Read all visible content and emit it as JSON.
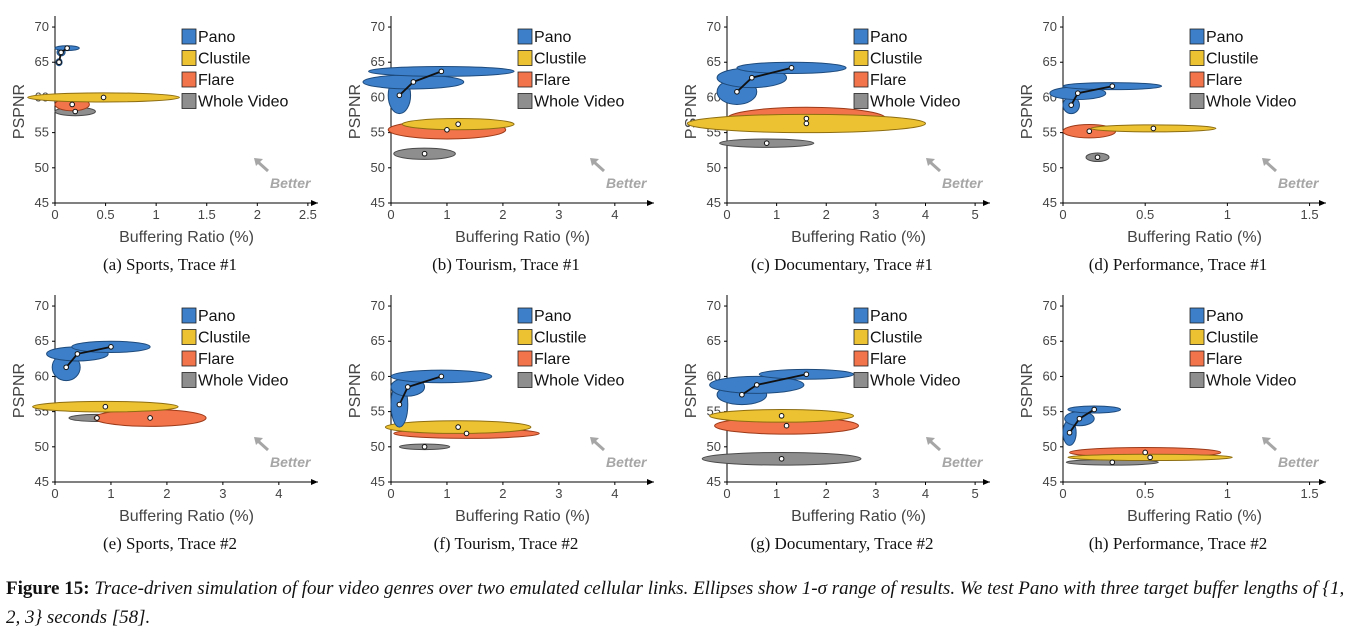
{
  "figure": {
    "label": "Figure 15:",
    "caption": "Trace-driven simulation of four video genres over two emulated cellular links. Ellipses show 1-σ range of results. We test Pano with three target buffer lengths of {1, 2, 3} seconds [58]."
  },
  "colors": {
    "Pano": "#3d7fc8",
    "Clustile": "#ecc232",
    "Flare": "#f2744a",
    "Whole Video": "#8e8e8e",
    "better": "#a6a6a6"
  },
  "chart_data": [
    {
      "id": "a",
      "type": "scatter",
      "subtitle": "(a) Sports, Trace #1",
      "xlabel": "Buffering Ratio (%)",
      "ylabel": "PSPNR",
      "xlim": [
        0,
        2.6
      ],
      "xticks": [
        "0",
        "0.5",
        "1",
        "1.5",
        "2",
        "2.5"
      ],
      "xtick_values": [
        0,
        0.5,
        1,
        1.5,
        2,
        2.5
      ],
      "ylim": [
        45,
        71
      ],
      "yticks": [
        "45",
        "50",
        "55",
        "60",
        "65",
        "70"
      ],
      "ytick_values": [
        45,
        50,
        55,
        60,
        65,
        70
      ],
      "legend": [
        "Pano",
        "Clustile",
        "Flare",
        "Whole Video"
      ],
      "annotation": "Better",
      "series": [
        {
          "name": "Pano",
          "points": [
            [
              0.04,
              65.0,
              0.03,
              0.5
            ],
            [
              0.06,
              66.4,
              0.04,
              0.5
            ],
            [
              0.12,
              67.0,
              0.12,
              0.35
            ]
          ]
        },
        {
          "name": "Clustile",
          "points": [
            [
              0.48,
              60.0,
              0.75,
              0.65
            ]
          ]
        },
        {
          "name": "Flare",
          "points": [
            [
              0.17,
              59.0,
              0.17,
              0.9
            ]
          ]
        },
        {
          "name": "Whole Video",
          "points": [
            [
              0.2,
              58.0,
              0.2,
              0.6
            ]
          ]
        }
      ]
    },
    {
      "id": "b",
      "type": "scatter",
      "subtitle": "(b) Tourism, Trace #1",
      "xlabel": "Buffering Ratio (%)",
      "ylabel": "PSPNR",
      "xlim": [
        0,
        4.7
      ],
      "xticks": [
        "0",
        "1",
        "2",
        "3",
        "4"
      ],
      "xtick_values": [
        0,
        1,
        2,
        3,
        4
      ],
      "ylim": [
        45,
        71
      ],
      "yticks": [
        "45",
        "50",
        "55",
        "60",
        "65",
        "70"
      ],
      "ytick_values": [
        45,
        50,
        55,
        60,
        65,
        70
      ],
      "legend": [
        "Pano",
        "Clustile",
        "Flare",
        "Whole Video"
      ],
      "annotation": "Better",
      "series": [
        {
          "name": "Pano",
          "points": [
            [
              0.15,
              60.3,
              0.2,
              2.6
            ],
            [
              0.4,
              62.2,
              0.9,
              1.0
            ],
            [
              0.9,
              63.7,
              1.3,
              0.7
            ]
          ]
        },
        {
          "name": "Clustile",
          "points": [
            [
              1.2,
              56.2,
              1.0,
              0.8
            ]
          ]
        },
        {
          "name": "Flare",
          "points": [
            [
              1.0,
              55.4,
              1.05,
              1.3
            ]
          ]
        },
        {
          "name": "Whole Video",
          "points": [
            [
              0.6,
              52.0,
              0.55,
              0.8
            ]
          ]
        }
      ]
    },
    {
      "id": "c",
      "type": "scatter",
      "subtitle": "(c) Documentary, Trace #1",
      "xlabel": "Buffering Ratio (%)",
      "ylabel": "PSPNR",
      "xlim": [
        0,
        5.3
      ],
      "xticks": [
        "0",
        "1",
        "2",
        "3",
        "4",
        "5"
      ],
      "xtick_values": [
        0,
        1,
        2,
        3,
        4,
        5
      ],
      "ylim": [
        45,
        71
      ],
      "yticks": [
        "45",
        "50",
        "55",
        "60",
        "65",
        "70"
      ],
      "ytick_values": [
        45,
        50,
        55,
        60,
        65,
        70
      ],
      "legend": [
        "Pano",
        "Clustile",
        "Flare",
        "Whole Video"
      ],
      "annotation": "Better",
      "series": [
        {
          "name": "Pano",
          "points": [
            [
              0.2,
              60.8,
              0.4,
              1.8
            ],
            [
              0.5,
              62.8,
              0.7,
              1.4
            ],
            [
              1.3,
              64.2,
              1.1,
              0.8
            ]
          ]
        },
        {
          "name": "Clustile",
          "points": [
            [
              1.6,
              56.3,
              2.4,
              1.3
            ]
          ]
        },
        {
          "name": "Flare",
          "points": [
            [
              1.6,
              57.0,
              1.6,
              1.6
            ]
          ]
        },
        {
          "name": "Whole Video",
          "points": [
            [
              0.8,
              53.5,
              0.95,
              0.6
            ]
          ]
        }
      ]
    },
    {
      "id": "d",
      "type": "scatter",
      "subtitle": "(d) Performance, Trace #1",
      "xlabel": "Buffering Ratio (%)",
      "ylabel": "PSPNR",
      "xlim": [
        0,
        1.6
      ],
      "xticks": [
        "0",
        "0.5",
        "1",
        "1.5"
      ],
      "xtick_values": [
        0,
        0.5,
        1,
        1.5
      ],
      "ylim": [
        45,
        71
      ],
      "yticks": [
        "45",
        "50",
        "55",
        "60",
        "65",
        "70"
      ],
      "ytick_values": [
        45,
        50,
        55,
        60,
        65,
        70
      ],
      "legend": [
        "Pano",
        "Clustile",
        "Flare",
        "Whole Video"
      ],
      "annotation": "Better",
      "series": [
        {
          "name": "Pano",
          "points": [
            [
              0.05,
              58.9,
              0.05,
              1.2
            ],
            [
              0.09,
              60.6,
              0.17,
              0.9
            ],
            [
              0.3,
              61.6,
              0.3,
              0.5
            ]
          ]
        },
        {
          "name": "Clustile",
          "points": [
            [
              0.55,
              55.6,
              0.38,
              0.5
            ]
          ]
        },
        {
          "name": "Flare",
          "points": [
            [
              0.16,
              55.2,
              0.16,
              0.95
            ]
          ]
        },
        {
          "name": "Whole Video",
          "points": [
            [
              0.21,
              51.5,
              0.07,
              0.6
            ]
          ]
        }
      ]
    },
    {
      "id": "e",
      "type": "scatter",
      "subtitle": "(e) Sports, Trace #2",
      "xlabel": "Buffering Ratio (%)",
      "ylabel": "PSPNR",
      "xlim": [
        0,
        4.7
      ],
      "xticks": [
        "0",
        "1",
        "2",
        "3",
        "4"
      ],
      "xtick_values": [
        0,
        1,
        2,
        3,
        4
      ],
      "ylim": [
        45,
        71
      ],
      "yticks": [
        "45",
        "50",
        "55",
        "60",
        "65",
        "70"
      ],
      "ytick_values": [
        45,
        50,
        55,
        60,
        65,
        70
      ],
      "legend": [
        "Pano",
        "Clustile",
        "Flare",
        "Whole Video"
      ],
      "annotation": "Better",
      "series": [
        {
          "name": "Pano",
          "points": [
            [
              0.2,
              61.3,
              0.25,
              1.9
            ],
            [
              0.4,
              63.2,
              0.55,
              1.0
            ],
            [
              1.0,
              64.2,
              0.7,
              0.8
            ]
          ]
        },
        {
          "name": "Clustile",
          "points": [
            [
              0.9,
              55.7,
              1.3,
              0.75
            ]
          ]
        },
        {
          "name": "Flare",
          "points": [
            [
              1.7,
              54.1,
              1.0,
              1.2
            ]
          ]
        },
        {
          "name": "Whole Video",
          "points": [
            [
              0.75,
              54.1,
              0.5,
              0.5
            ]
          ]
        }
      ]
    },
    {
      "id": "f",
      "type": "scatter",
      "subtitle": "(f) Tourism, Trace #2",
      "xlabel": "Buffering Ratio (%)",
      "ylabel": "PSPNR",
      "xlim": [
        0,
        4.7
      ],
      "xticks": [
        "0",
        "1",
        "2",
        "3",
        "4"
      ],
      "xtick_values": [
        0,
        1,
        2,
        3,
        4
      ],
      "ylim": [
        45,
        71
      ],
      "yticks": [
        "45",
        "50",
        "55",
        "60",
        "65",
        "70"
      ],
      "ytick_values": [
        45,
        50,
        55,
        60,
        65,
        70
      ],
      "legend": [
        "Pano",
        "Clustile",
        "Flare",
        "Whole Video"
      ],
      "annotation": "Better",
      "series": [
        {
          "name": "Pano",
          "points": [
            [
              0.15,
              56.0,
              0.15,
              3.2
            ],
            [
              0.3,
              58.5,
              0.3,
              1.3
            ],
            [
              0.9,
              60.0,
              0.9,
              0.9
            ]
          ]
        },
        {
          "name": "Clustile",
          "points": [
            [
              1.2,
              52.8,
              1.3,
              0.9
            ]
          ]
        },
        {
          "name": "Flare",
          "points": [
            [
              1.35,
              51.9,
              1.3,
              0.7
            ]
          ]
        },
        {
          "name": "Whole Video",
          "points": [
            [
              0.6,
              50.0,
              0.45,
              0.4
            ]
          ]
        }
      ]
    },
    {
      "id": "g",
      "type": "scatter",
      "subtitle": "(g) Documentary, Trace #2",
      "xlabel": "Buffering Ratio (%)",
      "ylabel": "PSPNR",
      "xlim": [
        0,
        5.3
      ],
      "xticks": [
        "0",
        "1",
        "2",
        "3",
        "4",
        "5"
      ],
      "xtick_values": [
        0,
        1,
        2,
        3,
        4,
        5
      ],
      "ylim": [
        45,
        71
      ],
      "yticks": [
        "45",
        "50",
        "55",
        "60",
        "65",
        "70"
      ],
      "ytick_values": [
        45,
        50,
        55,
        60,
        65,
        70
      ],
      "legend": [
        "Pano",
        "Clustile",
        "Flare",
        "Whole Video"
      ],
      "annotation": "Better",
      "series": [
        {
          "name": "Pano",
          "points": [
            [
              0.3,
              57.4,
              0.5,
              1.4
            ],
            [
              0.6,
              58.8,
              0.95,
              1.2
            ],
            [
              1.6,
              60.3,
              0.95,
              0.7
            ]
          ]
        },
        {
          "name": "Clustile",
          "points": [
            [
              1.1,
              54.4,
              1.45,
              0.9
            ]
          ]
        },
        {
          "name": "Flare",
          "points": [
            [
              1.2,
              53.0,
              1.45,
              1.2
            ]
          ]
        },
        {
          "name": "Whole Video",
          "points": [
            [
              1.1,
              48.3,
              1.6,
              0.9
            ]
          ]
        }
      ]
    },
    {
      "id": "h",
      "type": "scatter",
      "subtitle": "(h) Performance, Trace #2",
      "xlabel": "Buffering Ratio (%)",
      "ylabel": "PSPNR",
      "xlim": [
        0,
        1.6
      ],
      "xticks": [
        "0",
        "0.5",
        "1",
        "1.5"
      ],
      "xtick_values": [
        0,
        0.5,
        1,
        1.5
      ],
      "ylim": [
        45,
        71
      ],
      "yticks": [
        "45",
        "50",
        "55",
        "60",
        "65",
        "70"
      ],
      "ytick_values": [
        45,
        50,
        55,
        60,
        65,
        70
      ],
      "legend": [
        "Pano",
        "Clustile",
        "Flare",
        "Whole Video"
      ],
      "annotation": "Better",
      "series": [
        {
          "name": "Pano",
          "points": [
            [
              0.04,
              52.0,
              0.04,
              1.8
            ],
            [
              0.1,
              54.0,
              0.09,
              1.0
            ],
            [
              0.19,
              55.3,
              0.16,
              0.5
            ]
          ]
        },
        {
          "name": "Clustile",
          "points": [
            [
              0.53,
              48.5,
              0.5,
              0.45
            ]
          ]
        },
        {
          "name": "Flare",
          "points": [
            [
              0.5,
              49.2,
              0.46,
              0.7
            ]
          ]
        },
        {
          "name": "Whole Video",
          "points": [
            [
              0.3,
              47.8,
              0.28,
              0.4
            ]
          ]
        }
      ]
    }
  ]
}
